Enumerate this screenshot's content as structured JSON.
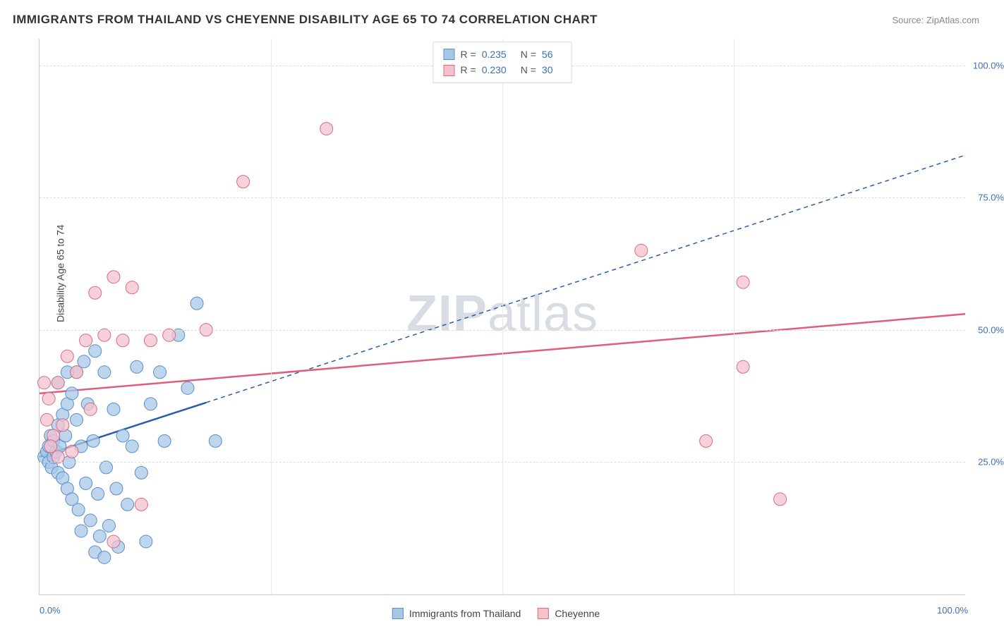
{
  "title": "IMMIGRANTS FROM THAILAND VS CHEYENNE DISABILITY AGE 65 TO 74 CORRELATION CHART",
  "source": "Source: ZipAtlas.com",
  "watermark": {
    "bold": "ZIP",
    "light": "atlas"
  },
  "y_axis_title": "Disability Age 65 to 74",
  "chart": {
    "type": "scatter",
    "xlim": [
      0,
      100
    ],
    "ylim": [
      0,
      105
    ],
    "x_ticks": [
      0,
      25,
      50,
      75,
      100
    ],
    "y_ticks": [
      25,
      50,
      75,
      100
    ],
    "x_tick_labels": [
      "0.0%",
      "",
      "",
      "",
      "100.0%"
    ],
    "y_tick_labels": [
      "25.0%",
      "50.0%",
      "75.0%",
      "100.0%"
    ],
    "grid_color": "#dddddd",
    "background_color": "#ffffff",
    "series": [
      {
        "name": "Immigrants from Thailand",
        "marker_fill": "#a7c7e7",
        "marker_stroke": "#5a8fc7",
        "marker_opacity": 0.75,
        "marker_radius": 9,
        "trend_color": "#2a5caa",
        "trend_solid_to_x": 18,
        "trend_y0": 26,
        "trend_y100": 83,
        "R": "0.235",
        "N": "56",
        "points": [
          [
            0.5,
            26
          ],
          [
            0.8,
            27
          ],
          [
            1,
            28
          ],
          [
            1,
            25
          ],
          [
            1.2,
            30
          ],
          [
            1.3,
            24
          ],
          [
            1.5,
            26
          ],
          [
            1.5,
            29
          ],
          [
            1.8,
            27
          ],
          [
            2,
            32
          ],
          [
            2,
            23
          ],
          [
            2.2,
            28
          ],
          [
            2.5,
            34
          ],
          [
            2.5,
            22
          ],
          [
            2.8,
            30
          ],
          [
            3,
            36
          ],
          [
            3,
            20
          ],
          [
            3.2,
            25
          ],
          [
            3.5,
            38
          ],
          [
            3.5,
            18
          ],
          [
            4,
            33
          ],
          [
            4,
            42
          ],
          [
            4.2,
            16
          ],
          [
            4.5,
            28
          ],
          [
            4.8,
            44
          ],
          [
            5,
            21
          ],
          [
            5.2,
            36
          ],
          [
            5.5,
            14
          ],
          [
            5.8,
            29
          ],
          [
            6,
            46
          ],
          [
            6.3,
            19
          ],
          [
            6.5,
            11
          ],
          [
            7,
            42
          ],
          [
            7.2,
            24
          ],
          [
            7.5,
            13
          ],
          [
            8,
            35
          ],
          [
            8.3,
            20
          ],
          [
            8.5,
            9
          ],
          [
            9,
            30
          ],
          [
            9.5,
            17
          ],
          [
            10,
            28
          ],
          [
            10.5,
            43
          ],
          [
            11,
            23
          ],
          [
            11.5,
            10
          ],
          [
            12,
            36
          ],
          [
            13,
            42
          ],
          [
            13.5,
            29
          ],
          [
            15,
            49
          ],
          [
            16,
            39
          ],
          [
            17,
            55
          ],
          [
            19,
            29
          ],
          [
            6,
            8
          ],
          [
            7,
            7
          ],
          [
            4.5,
            12
          ],
          [
            3,
            42
          ],
          [
            2,
            40
          ]
        ]
      },
      {
        "name": "Cheyenne",
        "marker_fill": "#f4c2cd",
        "marker_stroke": "#d86b82",
        "marker_opacity": 0.75,
        "marker_radius": 9,
        "trend_color": "#dd5f7a",
        "trend_solid_to_x": 100,
        "trend_y0": 38,
        "trend_y100": 53,
        "R": "0.230",
        "N": "30",
        "points": [
          [
            0.8,
            33
          ],
          [
            1,
            37
          ],
          [
            1.5,
            30
          ],
          [
            2,
            40
          ],
          [
            2.5,
            32
          ],
          [
            3,
            45
          ],
          [
            3.5,
            27
          ],
          [
            4,
            42
          ],
          [
            5,
            48
          ],
          [
            5.5,
            35
          ],
          [
            6,
            57
          ],
          [
            7,
            49
          ],
          [
            8,
            60
          ],
          [
            9,
            48
          ],
          [
            10,
            58
          ],
          [
            12,
            48
          ],
          [
            14,
            49
          ],
          [
            18,
            50
          ],
          [
            22,
            78
          ],
          [
            31,
            88
          ],
          [
            8,
            10
          ],
          [
            11,
            17
          ],
          [
            2,
            26
          ],
          [
            1.2,
            28
          ],
          [
            65,
            65
          ],
          [
            72,
            29
          ],
          [
            76,
            43
          ],
          [
            76,
            59
          ],
          [
            80,
            18
          ],
          [
            0.5,
            40
          ]
        ]
      }
    ]
  },
  "legend_top": [
    {
      "swatch_fill": "#a7c7e7",
      "swatch_stroke": "#5a8fc7",
      "r_label": "R =",
      "r_val": "0.235",
      "n_label": "N =",
      "n_val": "56"
    },
    {
      "swatch_fill": "#f4c2cd",
      "swatch_stroke": "#d86b82",
      "r_label": "R =",
      "r_val": "0.230",
      "n_label": "N =",
      "n_val": "30"
    }
  ],
  "legend_bottom": [
    {
      "swatch_fill": "#a7c7e7",
      "swatch_stroke": "#5a8fc7",
      "label": "Immigrants from Thailand"
    },
    {
      "swatch_fill": "#f4c2cd",
      "swatch_stroke": "#d86b82",
      "label": "Cheyenne"
    }
  ]
}
